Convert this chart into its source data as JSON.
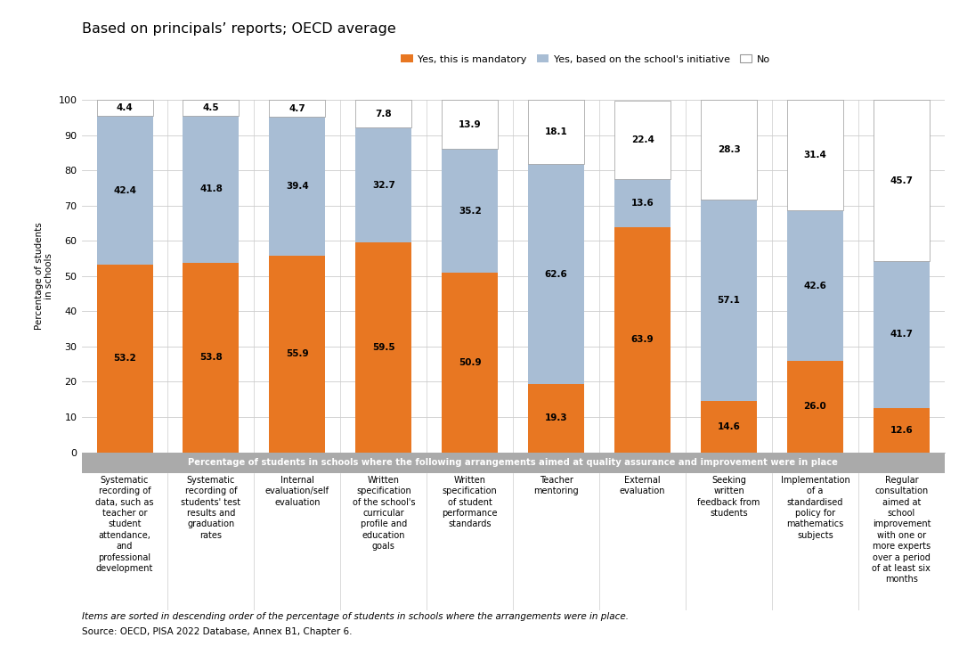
{
  "title": "Based on principals’ reports; OECD average",
  "ylabel": "Percentage of students\nin schools",
  "xlabel_gray_bar": "Percentage of students in schools where the following arrangements aimed at quality assurance and improvement were in place",
  "footnote1": "Items are sorted in descending order of the percentage of students in schools where the arrangements were in place.",
  "footnote2": "Source: OECD, PISA 2022 Database, Annex B1, Chapter 6.",
  "categories": [
    "Systematic\nrecording of\ndata, such as\nteacher or\nstudent\nattendance,\nand\nprofessional\ndevelopment",
    "Systematic\nrecording of\nstudents' test\nresults and\ngraduation\nrates",
    "Internal\nevaluation/self\nevaluation",
    "Written\nspecification\nof the school's\ncurricular\nprofile and\neducation\ngoals",
    "Written\nspecification\nof student\nperformance\nstandards",
    "Teacher\nmentoring",
    "External\nevaluation",
    "Seeking\nwritten\nfeedback from\nstudents",
    "Implementation\nof a\nstandardised\npolicy for\nmathematics\nsubjects",
    "Regular\nconsultation\naimed at\nschool\nimprovement\nwith one or\nmore experts\nover a period\nof at least six\nmonths"
  ],
  "mandatory": [
    53.2,
    53.8,
    55.9,
    59.5,
    50.9,
    19.3,
    63.9,
    14.6,
    26.0,
    12.6
  ],
  "initiative": [
    42.4,
    41.8,
    39.4,
    32.7,
    35.2,
    62.6,
    13.6,
    57.1,
    42.6,
    41.7
  ],
  "no": [
    4.4,
    4.5,
    4.7,
    7.8,
    13.9,
    18.1,
    22.4,
    28.3,
    31.4,
    45.7
  ],
  "color_mandatory": "#E87722",
  "color_initiative": "#A8BDD4",
  "color_no": "#FFFFFF",
  "color_no_edge": "#999999",
  "ylim": [
    0,
    100
  ],
  "yticks": [
    0,
    10,
    20,
    30,
    40,
    50,
    60,
    70,
    80,
    90,
    100
  ],
  "legend_labels": [
    "Yes, this is mandatory",
    "Yes, based on the school's initiative",
    "No"
  ],
  "gray_bar_color": "#AAAAAA",
  "gray_bar_text_color": "#FFFFFF",
  "bar_width": 0.65
}
